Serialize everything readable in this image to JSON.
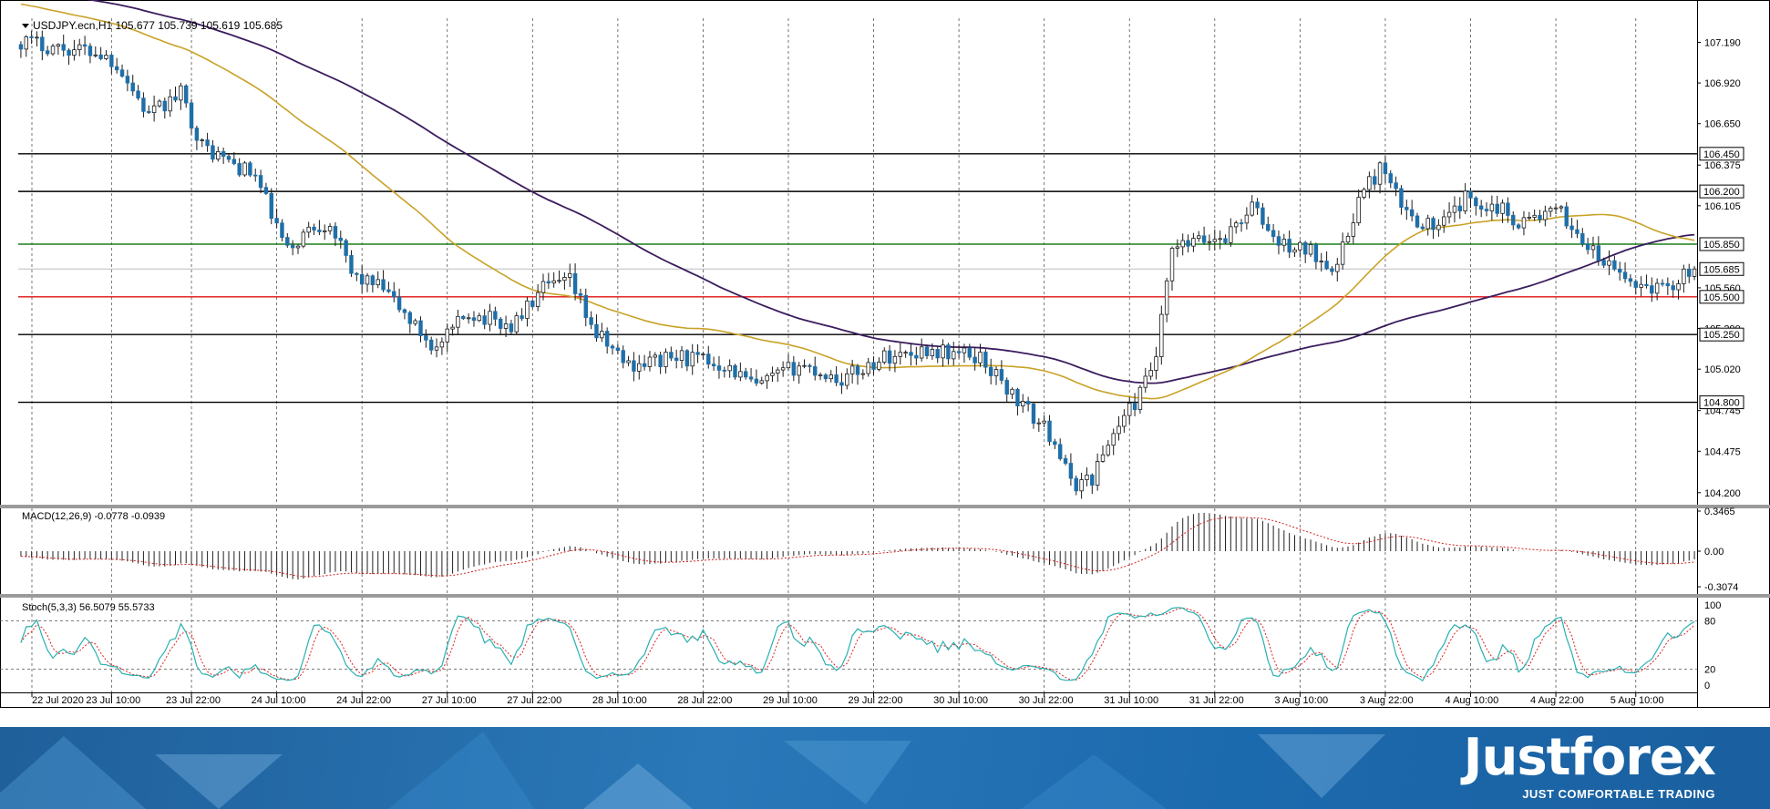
{
  "chart_data": {
    "type": "candlestick",
    "header": {
      "symbol": "USDJPY.ecn,H1",
      "open": "105.677",
      "high": "105.739",
      "low": "105.619",
      "close": "105.685"
    },
    "price_axis": {
      "range": [
        104.12,
        107.35
      ],
      "ticks": [
        "107.190",
        "106.920",
        "106.650",
        "106.375",
        "106.105",
        "105.560",
        "105.290",
        "105.020",
        "104.745",
        "104.475",
        "104.200"
      ]
    },
    "x_axis_labels": [
      "22 Jul 2020",
      "23 Jul 10:00",
      "23 Jul 22:00",
      "24 Jul 10:00",
      "24 Jul 22:00",
      "27 Jul 10:00",
      "27 Jul 22:00",
      "28 Jul 10:00",
      "28 Jul 22:00",
      "29 Jul 10:00",
      "29 Jul 22:00",
      "30 Jul 10:00",
      "30 Jul 22:00",
      "31 Jul 10:00",
      "31 Jul 22:00",
      "3 Aug 10:00",
      "3 Aug 22:00",
      "4 Aug 10:00",
      "4 Aug 22:00",
      "5 Aug 10:00"
    ],
    "levels": [
      {
        "label": "106.450",
        "value": 106.45,
        "color": "#000000"
      },
      {
        "label": "106.200",
        "value": 106.2,
        "color": "#000000"
      },
      {
        "label": "105.850",
        "value": 105.85,
        "color": "#1a7f1a"
      },
      {
        "label": "105.685",
        "value": 105.685,
        "color": "#bdbdbd"
      },
      {
        "label": "105.500",
        "value": 105.5,
        "color": "#e01010"
      },
      {
        "label": "105.250",
        "value": 105.25,
        "color": "#000000"
      },
      {
        "label": "104.800",
        "value": 104.8,
        "color": "#000000"
      }
    ],
    "anchors": [
      [
        0,
        107.2
      ],
      [
        8,
        107.15
      ],
      [
        14,
        107.13
      ],
      [
        18,
        107.05
      ],
      [
        24,
        106.7
      ],
      [
        30,
        106.85
      ],
      [
        34,
        106.5
      ],
      [
        44,
        106.3
      ],
      [
        50,
        105.8
      ],
      [
        54,
        105.95
      ],
      [
        58,
        106.0
      ],
      [
        62,
        105.65
      ],
      [
        68,
        105.55
      ],
      [
        74,
        105.3
      ],
      [
        78,
        105.15
      ],
      [
        84,
        105.4
      ],
      [
        92,
        105.3
      ],
      [
        98,
        105.55
      ],
      [
        103,
        105.6
      ],
      [
        108,
        105.25
      ],
      [
        114,
        105.05
      ],
      [
        124,
        105.1
      ],
      [
        132,
        105.05
      ],
      [
        138,
        104.9
      ],
      [
        146,
        105.05
      ],
      [
        154,
        104.95
      ],
      [
        162,
        105.1
      ],
      [
        170,
        105.15
      ],
      [
        180,
        105.1
      ],
      [
        186,
        104.85
      ],
      [
        190,
        104.7
      ],
      [
        194,
        104.55
      ],
      [
        197,
        104.25
      ],
      [
        201,
        104.3
      ],
      [
        205,
        104.6
      ],
      [
        210,
        104.85
      ],
      [
        213,
        105.1
      ],
      [
        216,
        105.8
      ],
      [
        219,
        105.85
      ],
      [
        226,
        105.9
      ],
      [
        231,
        106.1
      ],
      [
        236,
        105.85
      ],
      [
        242,
        105.8
      ],
      [
        247,
        105.7
      ],
      [
        251,
        106.15
      ],
      [
        255,
        106.35
      ],
      [
        260,
        106.05
      ],
      [
        266,
        105.95
      ],
      [
        271,
        106.15
      ],
      [
        277,
        106.1
      ],
      [
        281,
        106.0
      ],
      [
        286,
        106.05
      ],
      [
        289,
        106.05
      ],
      [
        296,
        105.75
      ],
      [
        302,
        105.6
      ],
      [
        308,
        105.55
      ],
      [
        314,
        105.685
      ]
    ],
    "seed": 17,
    "macd": {
      "label": "MACD(12,26,9) -0.0778 -0.0939",
      "range": [
        -0.37,
        0.37
      ],
      "ticks": [
        "0.3465",
        "0.00",
        "-0.3074"
      ]
    },
    "stoch": {
      "label": "Stoch(5,3,3) 56.5079 55.5733",
      "ticks": [
        "100",
        "80",
        "20",
        "0"
      ],
      "levels": [
        80,
        20
      ]
    },
    "colors": {
      "candle": "#1f6fa8",
      "wick": "#1a1a1a",
      "ma_fast": "#c9a227",
      "ma_slow": "#3b1c5e",
      "macd_hist": "#222222",
      "macd_signal": "#d02020",
      "stoch_main": "#2ab0b0",
      "stoch_signal": "#e02020",
      "grid": "#555555"
    }
  },
  "branding": {
    "logo": "Justforex",
    "tagline": "JUST COMFORTABLE TRADING"
  }
}
